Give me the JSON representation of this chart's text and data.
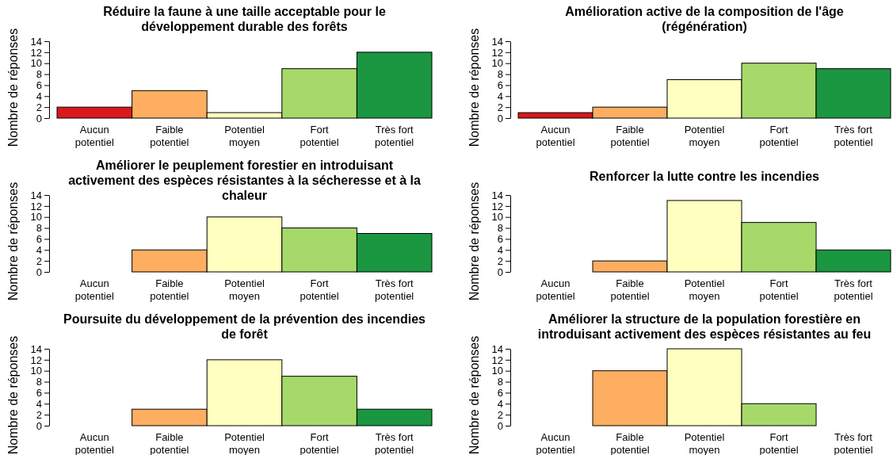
{
  "chart_data": [
    {
      "type": "bar",
      "title": "Réduire la faune à une taille acceptable pour le développement durable des forêts",
      "ylabel": "Nombre de réponses",
      "categories": [
        "Aucun potentiel",
        "Faible potentiel",
        "Potentiel moyen",
        "Fort potentiel",
        "Très fort potentiel"
      ],
      "values": [
        2,
        5,
        1,
        9,
        12
      ],
      "colors": [
        "#d7191c",
        "#fdae61",
        "#ffffbf",
        "#a6d96a",
        "#1a9641"
      ],
      "ylim": [
        0,
        14
      ],
      "yticks": [
        0,
        2,
        4,
        6,
        8,
        10,
        12,
        14
      ]
    },
    {
      "type": "bar",
      "title": "Amélioration active de la composition de l'âge (régénération)",
      "ylabel": "Nombre de réponses",
      "categories": [
        "Aucun potentiel",
        "Faible potentiel",
        "Potentiel moyen",
        "Fort potentiel",
        "Très fort potentiel"
      ],
      "values": [
        1,
        2,
        7,
        10,
        9
      ],
      "colors": [
        "#d7191c",
        "#fdae61",
        "#ffffbf",
        "#a6d96a",
        "#1a9641"
      ],
      "ylim": [
        0,
        14
      ],
      "yticks": [
        0,
        2,
        4,
        6,
        8,
        10,
        12,
        14
      ]
    },
    {
      "type": "bar",
      "title": "Améliorer le peuplement forestier en introduisant activement des espèces résistantes à la sécheresse et à la chaleur",
      "ylabel": "Nombre de réponses",
      "categories": [
        "Aucun potentiel",
        "Faible potentiel",
        "Potentiel moyen",
        "Fort potentiel",
        "Très fort potentiel"
      ],
      "values": [
        0,
        4,
        10,
        8,
        7
      ],
      "colors": [
        "#d7191c",
        "#fdae61",
        "#ffffbf",
        "#a6d96a",
        "#1a9641"
      ],
      "ylim": [
        0,
        14
      ],
      "yticks": [
        0,
        2,
        4,
        6,
        8,
        10,
        12,
        14
      ]
    },
    {
      "type": "bar",
      "title": "Renforcer la lutte contre les incendies",
      "ylabel": "Nombre de réponses",
      "categories": [
        "Aucun potentiel",
        "Faible potentiel",
        "Potentiel moyen",
        "Fort potentiel",
        "Très fort potentiel"
      ],
      "values": [
        0,
        2,
        13,
        9,
        4
      ],
      "colors": [
        "#d7191c",
        "#fdae61",
        "#ffffbf",
        "#a6d96a",
        "#1a9641"
      ],
      "ylim": [
        0,
        14
      ],
      "yticks": [
        0,
        2,
        4,
        6,
        8,
        10,
        12,
        14
      ]
    },
    {
      "type": "bar",
      "title": "Poursuite du développement de la prévention des incendies de forêt",
      "ylabel": "Nombre de réponses",
      "categories": [
        "Aucun potentiel",
        "Faible potentiel",
        "Potentiel moyen",
        "Fort potentiel",
        "Très fort potentiel"
      ],
      "values": [
        0,
        3,
        12,
        9,
        3
      ],
      "colors": [
        "#d7191c",
        "#fdae61",
        "#ffffbf",
        "#a6d96a",
        "#1a9641"
      ],
      "ylim": [
        0,
        14
      ],
      "yticks": [
        0,
        2,
        4,
        6,
        8,
        10,
        12,
        14
      ]
    },
    {
      "type": "bar",
      "title": "Améliorer la structure de la population forestière en introduisant activement des espèces résistantes au feu",
      "ylabel": "Nombre de réponses",
      "categories": [
        "Aucun potentiel",
        "Faible potentiel",
        "Potentiel moyen",
        "Fort potentiel",
        "Très fort potentiel"
      ],
      "values": [
        0,
        10,
        14,
        4,
        0
      ],
      "colors": [
        "#d7191c",
        "#fdae61",
        "#ffffbf",
        "#a6d96a",
        "#1a9641"
      ],
      "ylim": [
        0,
        14
      ],
      "yticks": [
        0,
        2,
        4,
        6,
        8,
        10,
        12,
        14
      ]
    }
  ]
}
